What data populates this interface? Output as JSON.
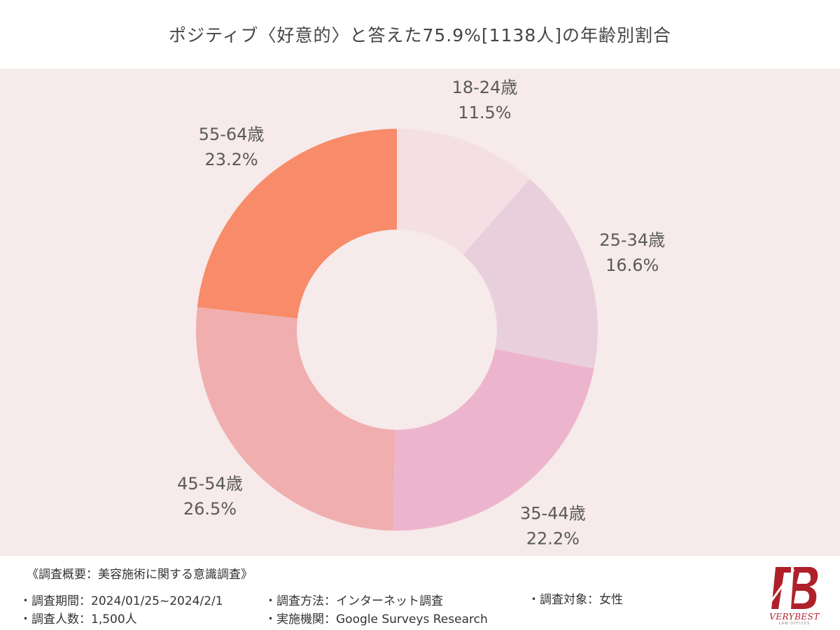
{
  "colors": {
    "panel_bg": "#f6eaea",
    "slice_1": "#f4e0e4",
    "slice_2": "#e9cfdb",
    "slice_3": "#edb5cd",
    "slice_4": "#f0aeae",
    "slice_5": "#f88b69",
    "logo_red": "#b0202a"
  },
  "chart_data": {
    "type": "pie",
    "style": "donut",
    "title": "ポジティブ〈好意的〉と答えた75.9%[1138人]の年齢別割合",
    "categories": [
      "18-24歳",
      "25-34歳",
      "35-44歳",
      "45-54歳",
      "55-64歳"
    ],
    "values": [
      11.5,
      16.6,
      22.2,
      26.5,
      23.2
    ],
    "value_labels": [
      "11.5%",
      "16.6%",
      "22.2%",
      "26.5%",
      "23.2%"
    ],
    "start": "12 o'clock",
    "direction": "clockwise"
  },
  "footer": {
    "heading": "《調査概要：美容施術に関する意識調査》",
    "period": "・調査期間：2024/01/25~2024/2/1",
    "method": "・調査方法：インターネット調査",
    "target": "・調査対象：女性",
    "count": "・調査人数：1,500人",
    "org": "・実施機関：Google Surveys  Research"
  },
  "logo": {
    "name": "VERYBEST",
    "sub": "LAW OFFICES"
  }
}
